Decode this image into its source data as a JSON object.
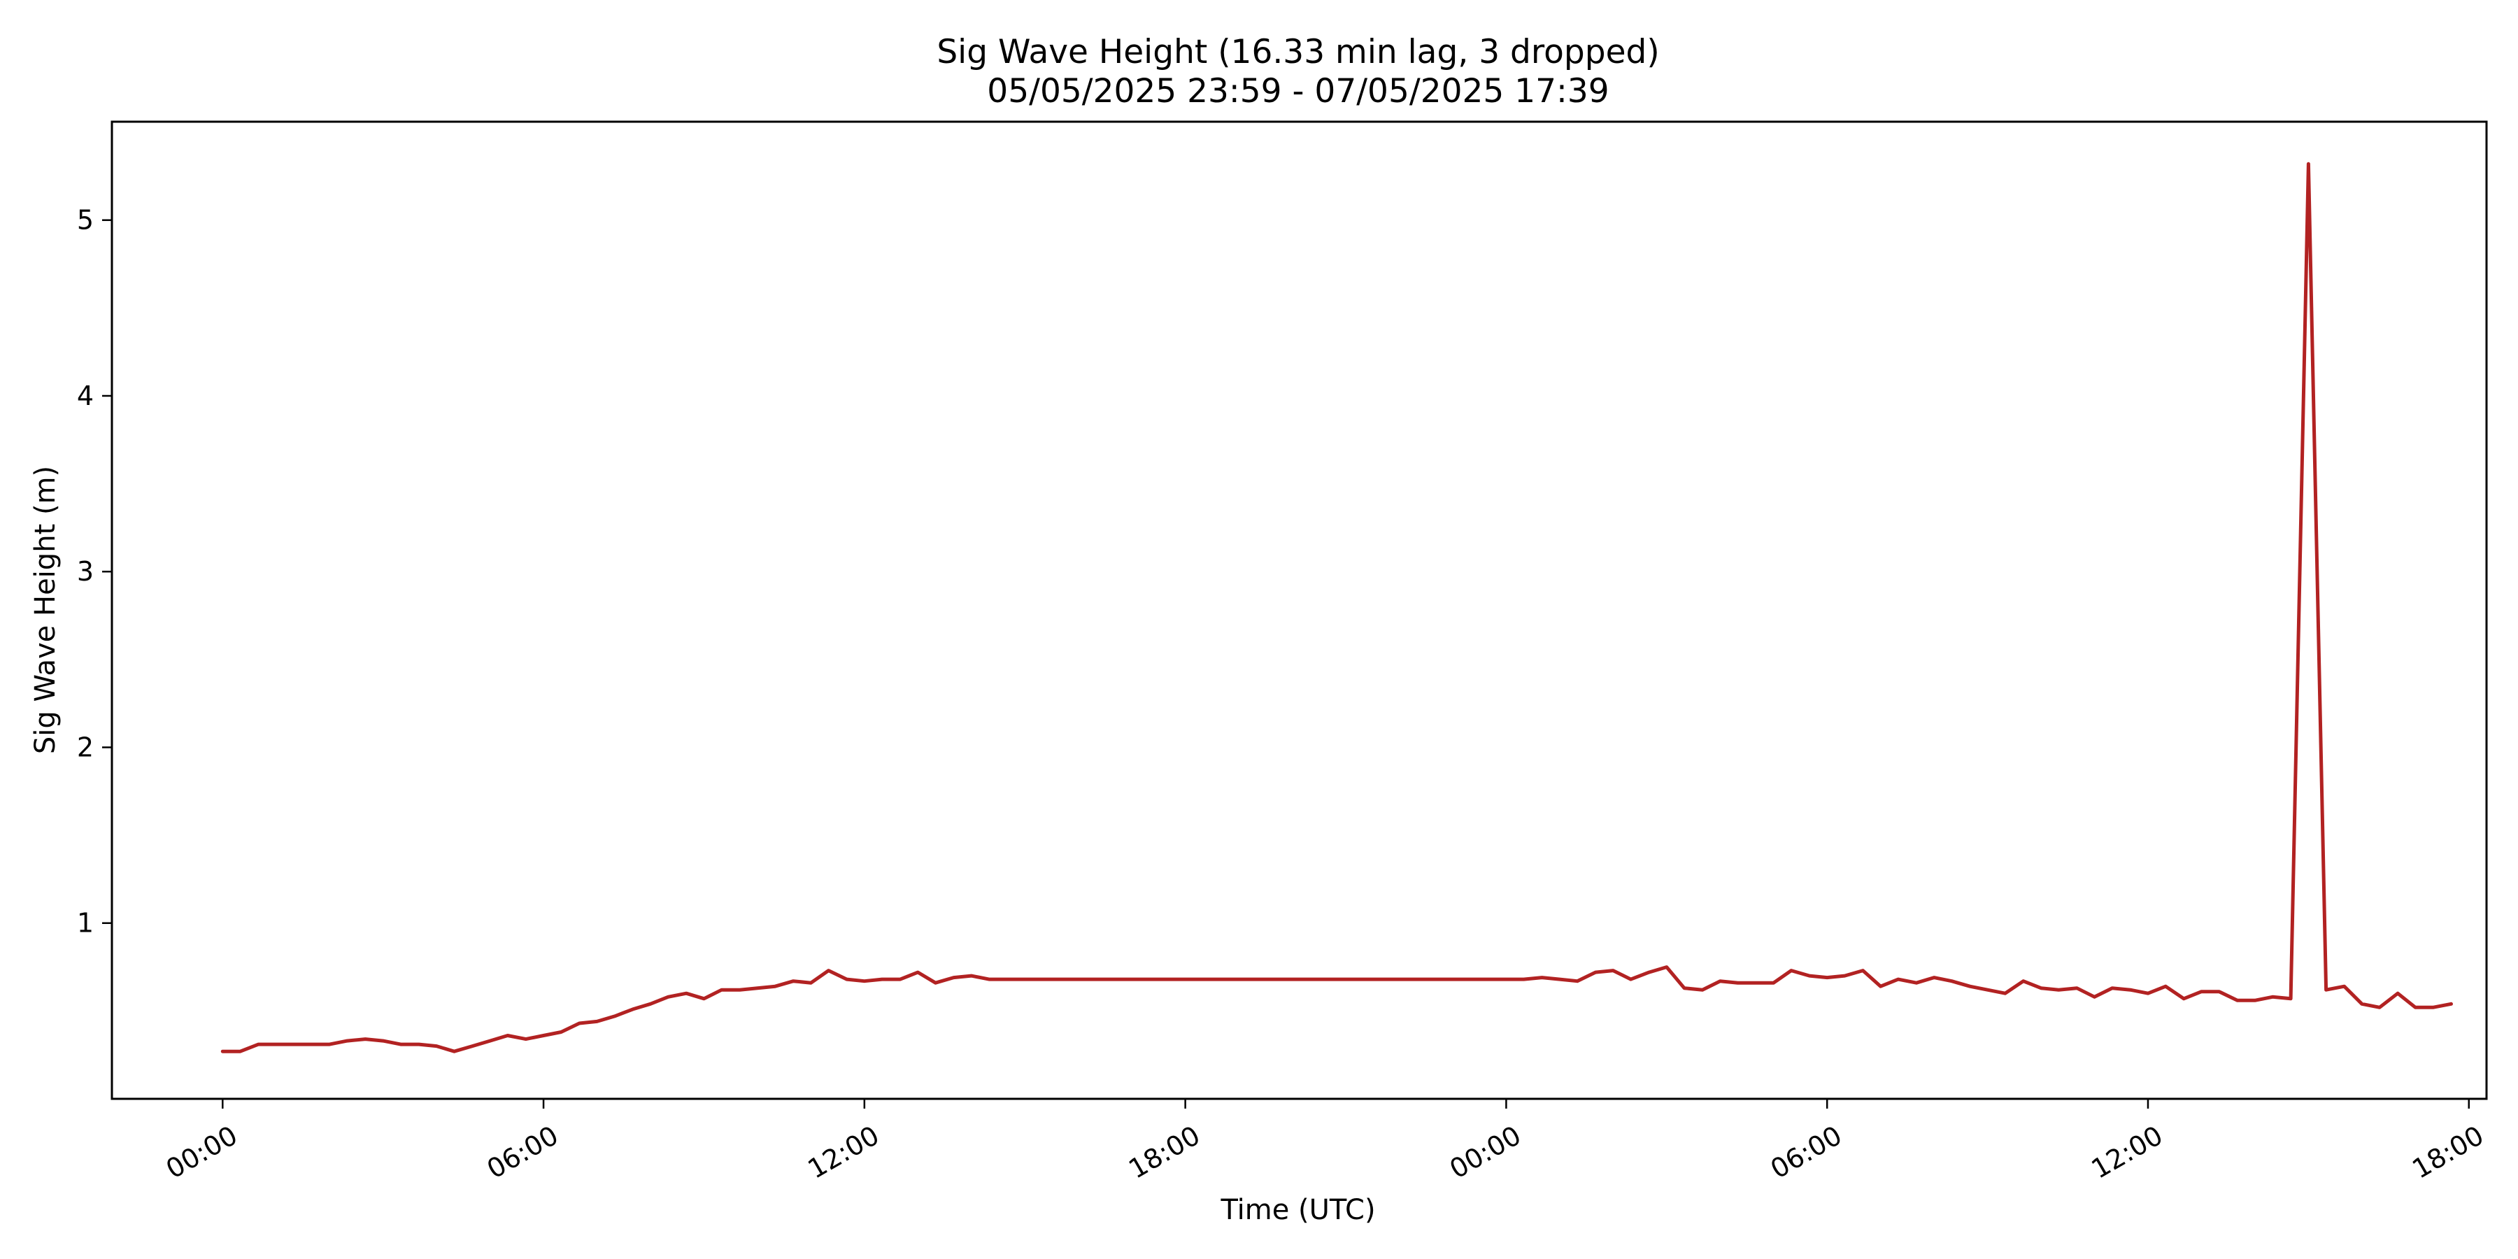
{
  "chart_data": {
    "type": "line",
    "title": "Sig Wave Height (16.33 min lag, 3 dropped)",
    "subtitle": "05/05/2025 23:59 - 07/05/2025 17:39",
    "xlabel": "Time (UTC)",
    "ylabel": "Sig Wave Height (m)",
    "x_unit": "hours",
    "xlim": [
      -2.07,
      42.33
    ],
    "ylim": [
      0.0,
      5.56
    ],
    "x_ticks": [
      {
        "value": 0,
        "label": "00:00"
      },
      {
        "value": 6,
        "label": "06:00"
      },
      {
        "value": 12,
        "label": "12:00"
      },
      {
        "value": 18,
        "label": "18:00"
      },
      {
        "value": 24,
        "label": "00:00"
      },
      {
        "value": 30,
        "label": "06:00"
      },
      {
        "value": 36,
        "label": "12:00"
      },
      {
        "value": 42,
        "label": "18:00"
      }
    ],
    "y_ticks": [
      {
        "value": 1,
        "label": "1"
      },
      {
        "value": 2,
        "label": "2"
      },
      {
        "value": 3,
        "label": "3"
      },
      {
        "value": 4,
        "label": "4"
      },
      {
        "value": 5,
        "label": "5"
      }
    ],
    "grid": false,
    "line_color": "#b22222",
    "series": [
      {
        "x": [
          0.0,
          0.33,
          0.67,
          1.0,
          1.33,
          1.67,
          2.0,
          2.33,
          2.67,
          3.0,
          3.33,
          3.67,
          4.0,
          4.33,
          4.67,
          5.0,
          5.33,
          5.67,
          6.0,
          6.33,
          6.67,
          7.0,
          7.33,
          7.67,
          8.0,
          8.33,
          8.67,
          9.0,
          9.33,
          9.67,
          10.0,
          10.33,
          10.67,
          11.0,
          11.33,
          11.67,
          12.0,
          12.33,
          12.67,
          13.0,
          13.33,
          13.67,
          14.0,
          14.33,
          14.67,
          15.0,
          16.0,
          17.0,
          18.0,
          19.0,
          20.0,
          21.0,
          22.0,
          23.0,
          24.0,
          24.33,
          24.67,
          25.0,
          25.33,
          25.67,
          26.0,
          26.33,
          26.67,
          27.0,
          27.33,
          27.67,
          28.0,
          28.33,
          28.67,
          29.0,
          29.33,
          29.67,
          30.0,
          30.33,
          30.67,
          31.0,
          31.33,
          31.67,
          32.0,
          32.33,
          32.67,
          33.0,
          33.33,
          33.67,
          34.0,
          34.33,
          34.67,
          35.0,
          35.33,
          35.67,
          36.0,
          36.33,
          36.67,
          37.0,
          37.33,
          37.67,
          38.0,
          38.33,
          38.67,
          39.0,
          39.33,
          39.67,
          40.0,
          40.33,
          40.67,
          41.0,
          41.33,
          41.67
        ],
        "y": [
          0.27,
          0.27,
          0.31,
          0.31,
          0.31,
          0.31,
          0.31,
          0.33,
          0.34,
          0.33,
          0.31,
          0.31,
          0.3,
          0.27,
          0.3,
          0.33,
          0.36,
          0.34,
          0.36,
          0.38,
          0.43,
          0.44,
          0.47,
          0.51,
          0.54,
          0.58,
          0.6,
          0.57,
          0.62,
          0.62,
          0.63,
          0.64,
          0.67,
          0.66,
          0.73,
          0.68,
          0.67,
          0.68,
          0.68,
          0.72,
          0.66,
          0.69,
          0.7,
          0.68,
          0.68,
          0.68,
          0.68,
          0.68,
          0.68,
          0.68,
          0.68,
          0.68,
          0.68,
          0.68,
          0.68,
          0.68,
          0.69,
          0.68,
          0.67,
          0.72,
          0.73,
          0.68,
          0.72,
          0.75,
          0.63,
          0.62,
          0.67,
          0.66,
          0.66,
          0.66,
          0.73,
          0.7,
          0.69,
          0.7,
          0.73,
          0.64,
          0.68,
          0.66,
          0.69,
          0.67,
          0.64,
          0.62,
          0.6,
          0.67,
          0.63,
          0.62,
          0.63,
          0.58,
          0.63,
          0.62,
          0.6,
          0.64,
          0.57,
          0.61,
          0.61,
          0.56,
          0.56,
          0.58,
          0.57,
          5.32,
          0.62,
          0.64,
          0.54,
          0.52,
          0.6,
          0.52,
          0.52,
          0.54
        ]
      }
    ]
  }
}
